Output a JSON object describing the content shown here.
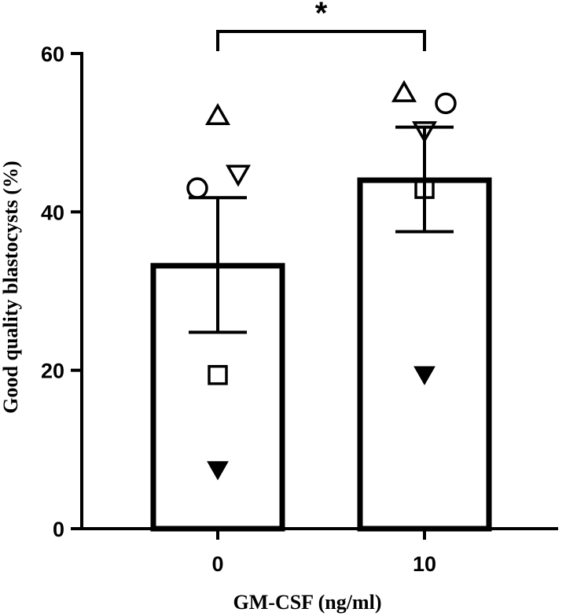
{
  "chart_data": {
    "type": "bar",
    "title": "",
    "xlabel": "GM-CSF (ng/ml)",
    "ylabel": "Good quality blastocysts (%)",
    "ylim": [
      0,
      60
    ],
    "yticks": [
      0,
      20,
      40,
      60
    ],
    "categories": [
      "0",
      "10"
    ],
    "values": [
      33.2,
      44.0
    ],
    "error": [
      {
        "low": 24.8,
        "high": 41.8
      },
      {
        "low": 37.5,
        "high": 50.7
      }
    ],
    "points": [
      {
        "category": "0",
        "marker": "triangle-up-open",
        "y": 52.1
      },
      {
        "category": "0",
        "marker": "triangle-down-open",
        "y": 44.8
      },
      {
        "category": "0",
        "marker": "circle-open",
        "y": 43.0
      },
      {
        "category": "0",
        "marker": "square-open",
        "y": 19.4
      },
      {
        "category": "0",
        "marker": "triangle-down-filled",
        "y": 7.5
      },
      {
        "category": "10",
        "marker": "triangle-up-open",
        "y": 55.0
      },
      {
        "category": "10",
        "marker": "circle-open",
        "y": 53.7
      },
      {
        "category": "10",
        "marker": "triangle-down-open",
        "y": 50.3
      },
      {
        "category": "10",
        "marker": "square-open",
        "y": 42.9
      },
      {
        "category": "10",
        "marker": "triangle-down-filled",
        "y": 19.5
      }
    ],
    "significance": {
      "from": "0",
      "to": "10",
      "label": "*"
    },
    "grid": false,
    "legend": "none"
  }
}
